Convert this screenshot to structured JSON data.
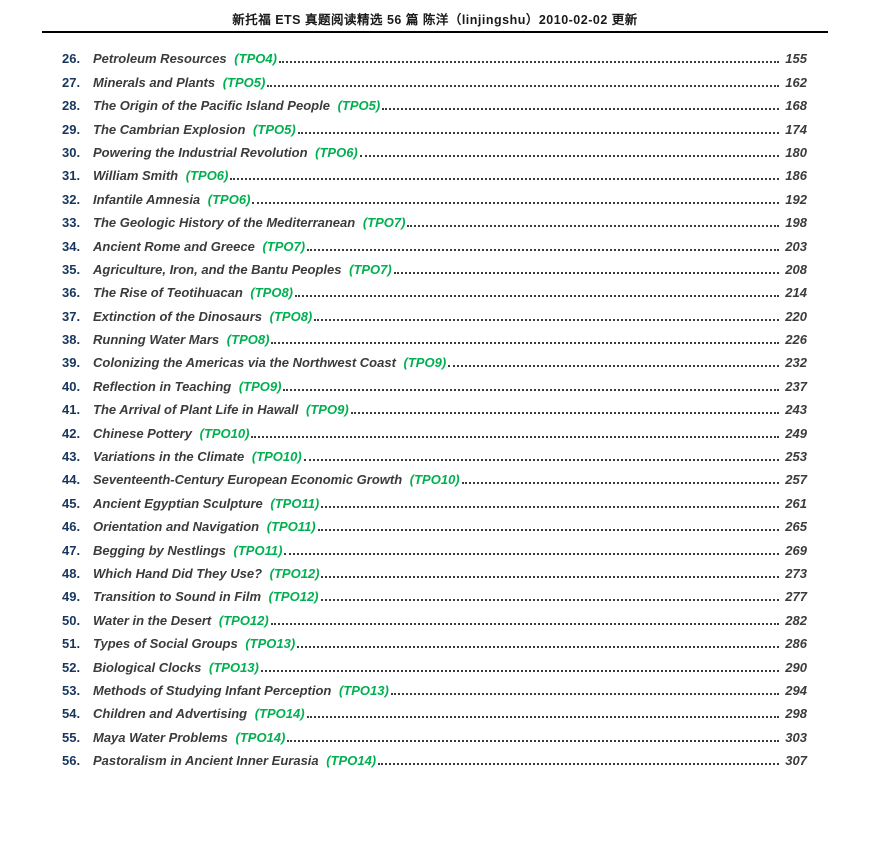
{
  "header": {
    "title": "新托福 ETS 真题阅读精选 56 篇 陈洋（linjingshu）2010-02-02 更新"
  },
  "colors": {
    "entry_number": "#17365D",
    "title_text": "#3B3B3B",
    "tpo_accent": "#00B050",
    "rule": "#000000",
    "page_background": "#FFFFFF"
  },
  "entries": [
    {
      "number": "26.",
      "title": "Petroleum Resources",
      "tpo": "(TPO4)",
      "page": "155"
    },
    {
      "number": "27.",
      "title": "Minerals and Plants",
      "tpo": "(TPO5)",
      "page": "162"
    },
    {
      "number": "28.",
      "title": "The Origin of the Pacific Island People",
      "tpo": "(TPO5)",
      "page": "168"
    },
    {
      "number": "29.",
      "title": "The Cambrian Explosion",
      "tpo": "(TPO5)",
      "page": "174"
    },
    {
      "number": "30.",
      "title": "Powering the Industrial Revolution",
      "tpo": "(TPO6)",
      "page": "180"
    },
    {
      "number": "31.",
      "title": "William Smith",
      "tpo": "(TPO6)",
      "page": "186"
    },
    {
      "number": "32.",
      "title": "Infantile Amnesia",
      "tpo": "(TPO6)",
      "page": "192"
    },
    {
      "number": "33.",
      "title": "The Geologic History of the Mediterranean",
      "tpo": "(TPO7)",
      "page": "198"
    },
    {
      "number": "34.",
      "title": "Ancient Rome and Greece",
      "tpo": "(TPO7)",
      "page": "203"
    },
    {
      "number": "35.",
      "title": "Agriculture, Iron, and the Bantu Peoples",
      "tpo": "(TPO7)",
      "page": "208"
    },
    {
      "number": "36.",
      "title": "The Rise of Teotihuacan",
      "tpo": "(TPO8)",
      "page": "214"
    },
    {
      "number": "37.",
      "title": "Extinction of the Dinosaurs",
      "tpo": "(TPO8)",
      "page": "220"
    },
    {
      "number": "38.",
      "title": "Running Water Mars",
      "tpo": "(TPO8)",
      "page": "226"
    },
    {
      "number": "39.",
      "title": "Colonizing the Americas via the Northwest Coast",
      "tpo": "(TPO9)",
      "page": "232"
    },
    {
      "number": "40.",
      "title": "Reflection in Teaching",
      "tpo": "(TPO9)",
      "page": "237"
    },
    {
      "number": "41.",
      "title": "The Arrival of Plant Life in Hawall",
      "tpo": "(TPO9)",
      "page": "243"
    },
    {
      "number": "42.",
      "title": "Chinese Pottery",
      "tpo": "(TPO10)",
      "page": "249"
    },
    {
      "number": "43.",
      "title": "Variations in the Climate",
      "tpo": "(TPO10)",
      "page": "253"
    },
    {
      "number": "44.",
      "title": "Seventeenth-Century European Economic Growth",
      "tpo": "(TPO10)",
      "page": "257"
    },
    {
      "number": "45.",
      "title": "Ancient Egyptian Sculpture",
      "tpo": "(TPO11)",
      "page": "261"
    },
    {
      "number": "46.",
      "title": "Orientation and Navigation",
      "tpo": "(TPO11)",
      "page": "265"
    },
    {
      "number": "47.",
      "title": "Begging by Nestlings",
      "tpo": "(TPO11)",
      "page": "269"
    },
    {
      "number": "48.",
      "title": "Which Hand Did They Use?",
      "tpo": "(TPO12)",
      "page": "273"
    },
    {
      "number": "49.",
      "title": "Transition to Sound in Film",
      "tpo": "(TPO12)",
      "page": "277"
    },
    {
      "number": "50.",
      "title": "Water in the Desert",
      "tpo": "(TPO12)",
      "page": "282"
    },
    {
      "number": "51.",
      "title": "Types of Social Groups",
      "tpo": "(TPO13)",
      "page": "286"
    },
    {
      "number": "52.",
      "title": "Biological Clocks",
      "tpo": "(TPO13)",
      "page": "290"
    },
    {
      "number": "53.",
      "title": "Methods of Studying Infant Perception",
      "tpo": "(TPO13)",
      "page": "294"
    },
    {
      "number": "54.",
      "title": "Children and Advertising",
      "tpo": "(TPO14)",
      "page": "298"
    },
    {
      "number": "55.",
      "title": "Maya Water Problems",
      "tpo": "(TPO14)",
      "page": "303"
    },
    {
      "number": "56.",
      "title": "Pastoralism in Ancient Inner Eurasia",
      "tpo": "(TPO14)",
      "page": "307"
    }
  ]
}
